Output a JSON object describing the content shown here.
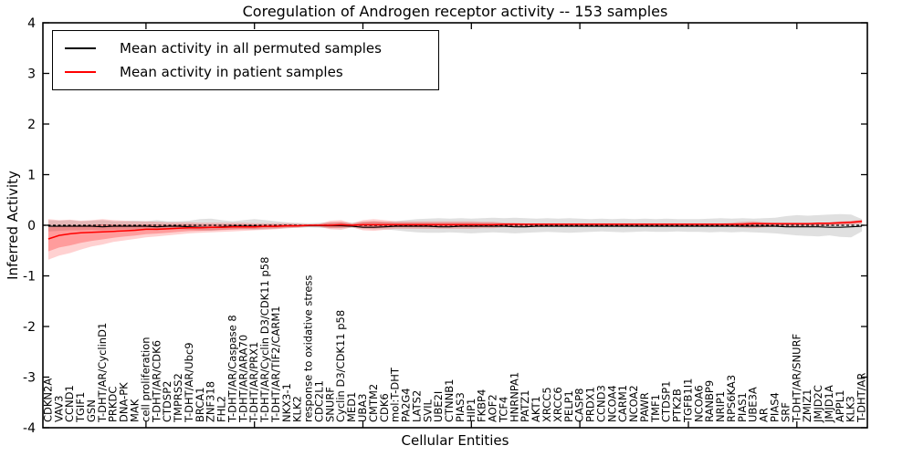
{
  "chart_data": {
    "type": "line",
    "title": "Coregulation of Androgen receptor activity -- 153 samples",
    "xlabel": "Cellular Entities",
    "ylabel": "Inferred Activity",
    "ylim": [
      -4,
      4
    ],
    "yticks": [
      4,
      3,
      2,
      1,
      0,
      -1,
      -2,
      -3,
      -4
    ],
    "grid": false,
    "legend_position": "upper left",
    "zero_line_style": "dashed",
    "top_tick_category_indices": [
      9,
      19,
      29,
      39,
      49,
      59,
      69
    ],
    "categories": [
      "CDKN2A",
      "VAV3",
      "CCND1",
      "TGIF1",
      "GSN",
      "T-DHT/AR/CyclinD1",
      "PRKDC",
      "DNA-PK",
      "MAK",
      "cell proliferation",
      "T-DHT/AR/CDK6",
      "CTDSP2",
      "TMPRSS2",
      "T-DHT/AR/Ubc9",
      "BRCA1",
      "ZNF318",
      "FHL2",
      "T-DHT/AR/Caspase 8",
      "T-DHT/AR/ARA70",
      "T-DHT/AR/PRX1",
      "T-DHT/AR/Cyclin D3/CDK11 p58",
      "T-DHT/AR/TIF2/CARM1",
      "NKX3-1",
      "KLK2",
      "response to oxidative stress",
      "CDC2L1",
      "SNURF",
      "Cyclin D3/CDK11 p58",
      "MED1",
      "UBA3",
      "CMTM2",
      "CDK6",
      "mol:T-DHT",
      "PA2G4",
      "LATS2",
      "SVIL",
      "UBE2I",
      "CTNNB1",
      "PIAS3",
      "HIP1",
      "FKBP4",
      "AOF2",
      "TCF4",
      "HNRNPA1",
      "PATZ1",
      "AKT1",
      "XRCC5",
      "XRCC6",
      "PELP1",
      "CASP8",
      "PRDX1",
      "CCND3",
      "NCOA4",
      "CARM1",
      "NCOA2",
      "PAWR",
      "TMF1",
      "CTDSP1",
      "PTK2B",
      "TGFB1I1",
      "NCOA6",
      "RANBP9",
      "NRIP1",
      "RPS6KA3",
      "PIAS1",
      "UBE3A",
      "AR",
      "PIAS4",
      "SRF",
      "T-DHT/AR/SNURF",
      "ZMIZ1",
      "JMJD2C",
      "JMJD1A",
      "APPL1",
      "KLK3",
      "T-DHT/AR"
    ],
    "series": [
      {
        "name": "Mean activity in all permuted samples",
        "color": "#000000",
        "values": [
          -0.02,
          -0.02,
          -0.02,
          -0.02,
          -0.02,
          -0.03,
          -0.02,
          -0.02,
          -0.02,
          -0.02,
          -0.03,
          -0.02,
          -0.02,
          -0.03,
          -0.04,
          -0.04,
          -0.03,
          -0.02,
          -0.02,
          -0.02,
          -0.02,
          -0.02,
          -0.01,
          -0.01,
          -0.01,
          -0.01,
          -0.01,
          -0.01,
          -0.02,
          -0.04,
          -0.04,
          -0.03,
          -0.02,
          -0.02,
          -0.02,
          -0.02,
          -0.03,
          -0.03,
          -0.02,
          -0.02,
          -0.02,
          -0.02,
          -0.02,
          -0.03,
          -0.03,
          -0.02,
          -0.02,
          -0.02,
          -0.02,
          -0.02,
          -0.02,
          -0.02,
          -0.02,
          -0.02,
          -0.02,
          -0.02,
          -0.02,
          -0.02,
          -0.02,
          -0.02,
          -0.02,
          -0.02,
          -0.02,
          -0.02,
          -0.02,
          -0.02,
          -0.02,
          -0.02,
          -0.03,
          -0.03,
          -0.03,
          -0.03,
          -0.04,
          -0.04,
          -0.03,
          -0.02
        ]
      },
      {
        "name": "Mean activity in patient samples",
        "color": "#ff0000",
        "values": [
          -0.27,
          -0.2,
          -0.17,
          -0.15,
          -0.14,
          -0.13,
          -0.12,
          -0.11,
          -0.1,
          -0.08,
          -0.08,
          -0.07,
          -0.06,
          -0.05,
          -0.05,
          -0.04,
          -0.04,
          -0.03,
          -0.03,
          -0.03,
          -0.02,
          -0.02,
          -0.01,
          -0.01,
          0.0,
          0.0,
          0.0,
          0.01,
          0.0,
          0.01,
          0.01,
          0.01,
          0.01,
          0.01,
          0.01,
          0.01,
          0.01,
          0.01,
          0.01,
          0.01,
          0.01,
          0.01,
          0.02,
          0.02,
          0.02,
          0.02,
          0.02,
          0.02,
          0.02,
          0.02,
          0.02,
          0.02,
          0.02,
          0.02,
          0.02,
          0.02,
          0.02,
          0.02,
          0.02,
          0.02,
          0.02,
          0.02,
          0.02,
          0.02,
          0.02,
          0.03,
          0.03,
          0.03,
          0.03,
          0.03,
          0.03,
          0.04,
          0.04,
          0.05,
          0.06,
          0.08
        ]
      }
    ],
    "bands": [
      {
        "name": "permuted-samples-range",
        "color": "#999999",
        "opacity": 0.3,
        "upper": [
          0.1,
          0.09,
          0.1,
          0.08,
          0.09,
          0.1,
          0.08,
          0.08,
          0.09,
          0.08,
          0.1,
          0.08,
          0.08,
          0.09,
          0.12,
          0.13,
          0.1,
          0.08,
          0.1,
          0.12,
          0.1,
          0.08,
          0.06,
          0.05,
          0.04,
          0.05,
          0.06,
          0.06,
          0.05,
          0.07,
          0.08,
          0.07,
          0.08,
          0.1,
          0.12,
          0.13,
          0.14,
          0.13,
          0.14,
          0.13,
          0.14,
          0.15,
          0.14,
          0.15,
          0.14,
          0.13,
          0.14,
          0.13,
          0.14,
          0.13,
          0.12,
          0.13,
          0.12,
          0.13,
          0.12,
          0.13,
          0.12,
          0.13,
          0.12,
          0.12,
          0.12,
          0.13,
          0.14,
          0.13,
          0.14,
          0.13,
          0.14,
          0.15,
          0.18,
          0.2,
          0.19,
          0.2,
          0.21,
          0.22,
          0.21,
          0.12
        ],
        "lower": [
          -0.12,
          -0.11,
          -0.1,
          -0.1,
          -0.09,
          -0.1,
          -0.09,
          -0.08,
          -0.09,
          -0.08,
          -0.1,
          -0.08,
          -0.08,
          -0.09,
          -0.1,
          -0.11,
          -0.09,
          -0.08,
          -0.08,
          -0.09,
          -0.08,
          -0.07,
          -0.06,
          -0.05,
          -0.04,
          -0.05,
          -0.06,
          -0.06,
          -0.05,
          -0.07,
          -0.08,
          -0.08,
          -0.1,
          -0.12,
          -0.14,
          -0.15,
          -0.15,
          -0.14,
          -0.15,
          -0.16,
          -0.15,
          -0.14,
          -0.15,
          -0.16,
          -0.15,
          -0.14,
          -0.13,
          -0.14,
          -0.15,
          -0.14,
          -0.13,
          -0.12,
          -0.13,
          -0.14,
          -0.13,
          -0.12,
          -0.13,
          -0.13,
          -0.12,
          -0.13,
          -0.13,
          -0.14,
          -0.13,
          -0.14,
          -0.13,
          -0.14,
          -0.15,
          -0.16,
          -0.18,
          -0.2,
          -0.21,
          -0.22,
          -0.2,
          -0.23,
          -0.24,
          -0.12
        ]
      },
      {
        "name": "patient-samples-range",
        "color": "#ff0000",
        "opacity": 0.18,
        "inner_band_scale": 0.6,
        "upper": [
          0.12,
          0.1,
          0.11,
          0.09,
          0.1,
          0.12,
          0.1,
          0.09,
          0.08,
          0.08,
          0.07,
          0.06,
          0.06,
          0.06,
          0.05,
          0.05,
          0.05,
          0.05,
          0.05,
          0.04,
          0.04,
          0.04,
          0.04,
          0.03,
          0.02,
          0.03,
          0.09,
          0.1,
          0.04,
          0.1,
          0.12,
          0.1,
          0.08,
          0.08,
          0.08,
          0.08,
          0.08,
          0.08,
          0.08,
          0.08,
          0.07,
          0.07,
          0.05,
          0.05,
          0.04,
          0.04,
          0.04,
          0.04,
          0.04,
          0.04,
          0.04,
          0.04,
          0.04,
          0.04,
          0.04,
          0.04,
          0.04,
          0.04,
          0.04,
          0.04,
          0.04,
          0.04,
          0.04,
          0.05,
          0.07,
          0.08,
          0.06,
          0.05,
          0.05,
          0.05,
          0.05,
          0.05,
          0.06,
          0.08,
          0.09,
          0.11
        ],
        "lower": [
          -0.68,
          -0.6,
          -0.55,
          -0.48,
          -0.42,
          -0.38,
          -0.33,
          -0.3,
          -0.27,
          -0.24,
          -0.22,
          -0.2,
          -0.18,
          -0.16,
          -0.15,
          -0.14,
          -0.13,
          -0.12,
          -0.11,
          -0.1,
          -0.09,
          -0.08,
          -0.06,
          -0.05,
          -0.03,
          -0.03,
          -0.08,
          -0.09,
          -0.04,
          -0.1,
          -0.11,
          -0.09,
          -0.07,
          -0.07,
          -0.07,
          -0.07,
          -0.07,
          -0.07,
          -0.07,
          -0.07,
          -0.06,
          -0.06,
          -0.04,
          -0.04,
          -0.04,
          -0.04,
          -0.03,
          -0.03,
          -0.03,
          -0.03,
          -0.03,
          -0.03,
          -0.03,
          -0.03,
          -0.03,
          -0.03,
          -0.03,
          -0.03,
          -0.03,
          -0.03,
          -0.03,
          -0.03,
          -0.03,
          -0.03,
          -0.05,
          -0.06,
          -0.04,
          -0.03,
          -0.03,
          -0.03,
          -0.02,
          -0.02,
          -0.01,
          0.0,
          0.01,
          0.03
        ]
      }
    ]
  }
}
